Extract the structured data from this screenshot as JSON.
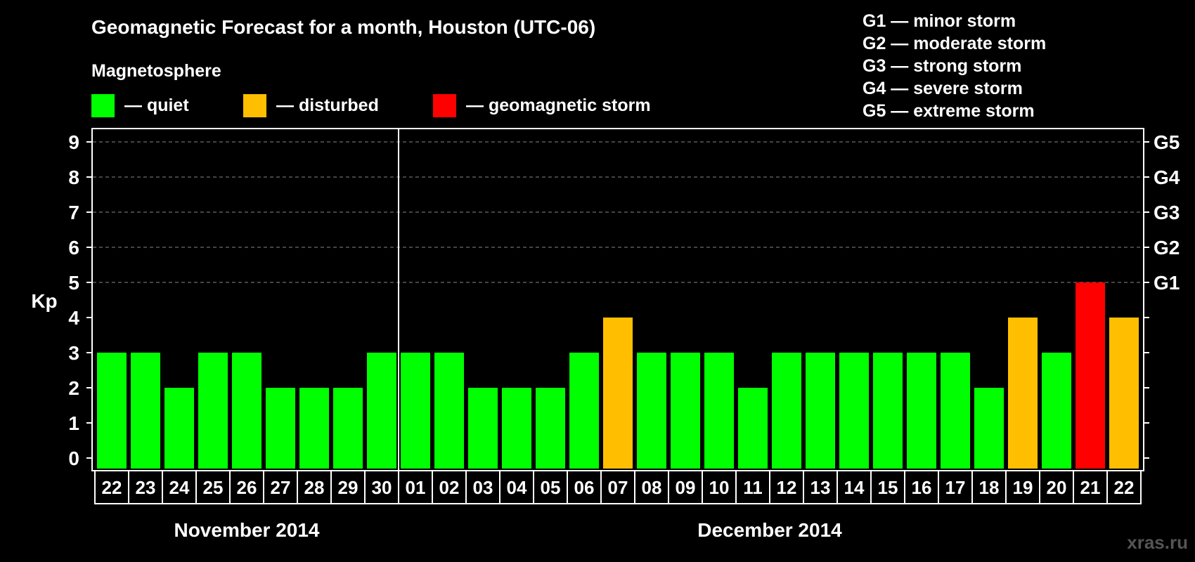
{
  "chart_data": {
    "type": "bar",
    "title": "Geomagnetic Forecast for a month, Houston (UTC-06)",
    "ylabel": "Kp",
    "ylim": [
      0,
      9
    ],
    "yticks": [
      "0",
      "1",
      "2",
      "3",
      "4",
      "5",
      "6",
      "7",
      "8",
      "9"
    ],
    "right_axis": [
      {
        "kp": 5,
        "label": "G1"
      },
      {
        "kp": 6,
        "label": "G2"
      },
      {
        "kp": 7,
        "label": "G3"
      },
      {
        "kp": 8,
        "label": "G4"
      },
      {
        "kp": 9,
        "label": "G5"
      }
    ],
    "categories": [
      "22",
      "23",
      "24",
      "25",
      "26",
      "27",
      "28",
      "29",
      "30",
      "01",
      "02",
      "03",
      "04",
      "05",
      "06",
      "07",
      "08",
      "09",
      "10",
      "11",
      "12",
      "13",
      "14",
      "15",
      "16",
      "17",
      "18",
      "19",
      "20",
      "21",
      "22"
    ],
    "values": [
      3,
      3,
      2,
      3,
      3,
      2,
      2,
      2,
      3,
      3,
      3,
      2,
      2,
      2,
      3,
      4,
      3,
      3,
      3,
      2,
      3,
      3,
      3,
      3,
      3,
      3,
      2,
      4,
      3,
      5,
      4
    ],
    "month_groups": [
      {
        "label": "November 2014",
        "start": 0,
        "end": 8
      },
      {
        "label": "December 2014",
        "start": 9,
        "end": 30
      }
    ],
    "grid": true,
    "legend_title": "Magnetosphere",
    "legend": [
      {
        "label": "— quiet",
        "color": "#00ff00"
      },
      {
        "label": "— disturbed",
        "color": "#ffbf00"
      },
      {
        "label": "— geomagnetic storm",
        "color": "#ff0000"
      }
    ],
    "storm_scale": [
      "G1 — minor storm",
      "G2 — moderate storm",
      "G3 — strong storm",
      "G4 — severe storm",
      "G5 — extreme storm"
    ]
  },
  "colors": {
    "quiet": "#00ff00",
    "disturbed": "#ffbf00",
    "storm": "#ff0000",
    "background": "#000000",
    "foreground": "#ffffff"
  },
  "watermark": "xras.ru"
}
